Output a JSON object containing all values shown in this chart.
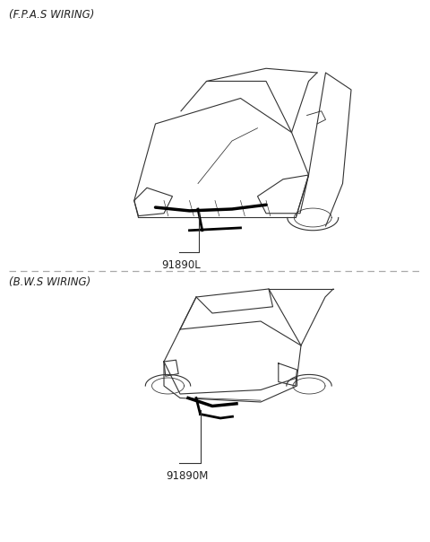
{
  "title_fpas": "(F.P.A.S WIRING)",
  "title_bws": "(B.W.S WIRING)",
  "label_top": "91890L",
  "label_bottom": "91890M",
  "bg_color": "#ffffff",
  "line_color": "#333333",
  "text_color": "#222222",
  "dashed_line_color": "#aaaaaa",
  "fig_width": 4.8,
  "fig_height": 6.04
}
